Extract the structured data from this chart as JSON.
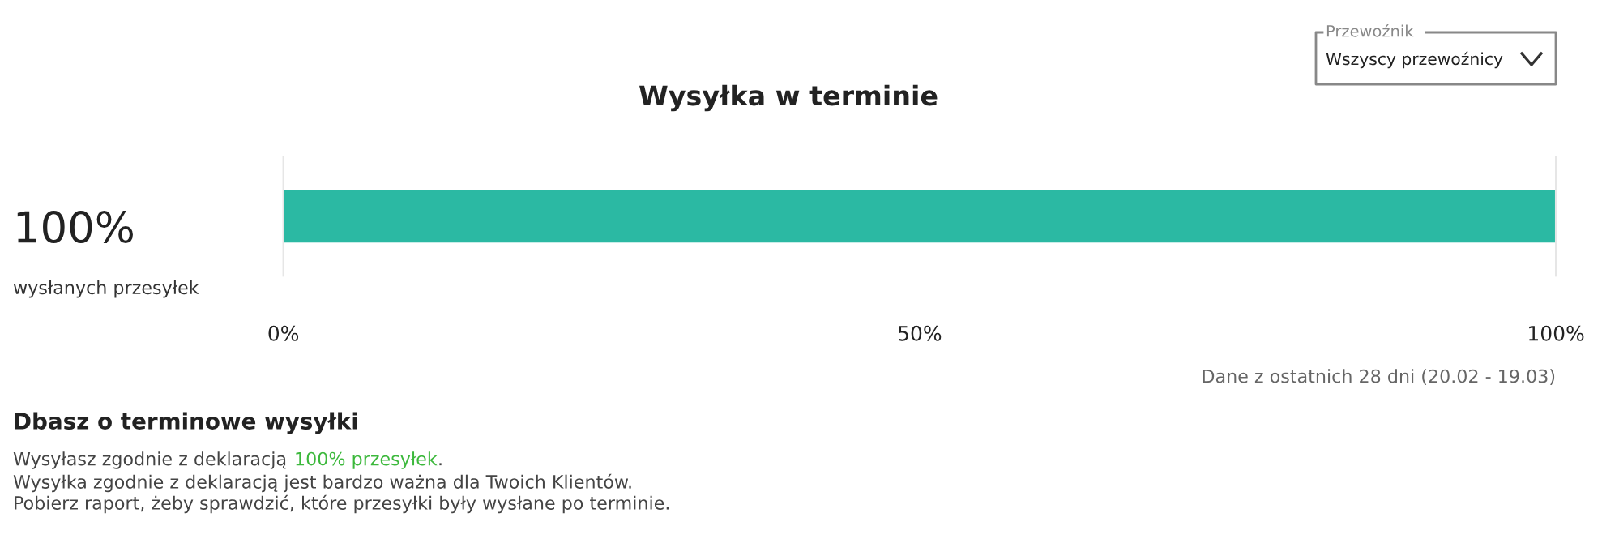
{
  "chart_data": {
    "type": "bar",
    "orientation": "horizontal",
    "title": "Wysyłka w terminie",
    "categories": [
      null
    ],
    "series": [
      {
        "color": "#2bb9a3",
        "values": [
          100
        ]
      }
    ],
    "xlim": [
      0,
      100
    ],
    "xticks": [
      {
        "value": 0,
        "label": "0%"
      },
      {
        "value": 50,
        "label": "50%"
      },
      {
        "value": 100,
        "label": "100%"
      }
    ],
    "tick_labels": "x",
    "grid": false,
    "annotations": [
      "100%",
      "wysłanych przesyłek",
      "Przewoźnik",
      "Wszyscy przewoźnicy",
      "Dane z ostatnich 28 dni (20.02 - 19.03)",
      "Dbasz o terminowe wysyłki",
      "Wysyłasz zgodnie z deklaracją ",
      "100% przesyłek",
      ".",
      "Wysyłka zgodnie z deklaracją jest bardzo ważna dla Twoich Klientów.",
      "Pobierz raport, żeby sprawdzić, które przesyłki były wysłane po terminie."
    ]
  }
}
